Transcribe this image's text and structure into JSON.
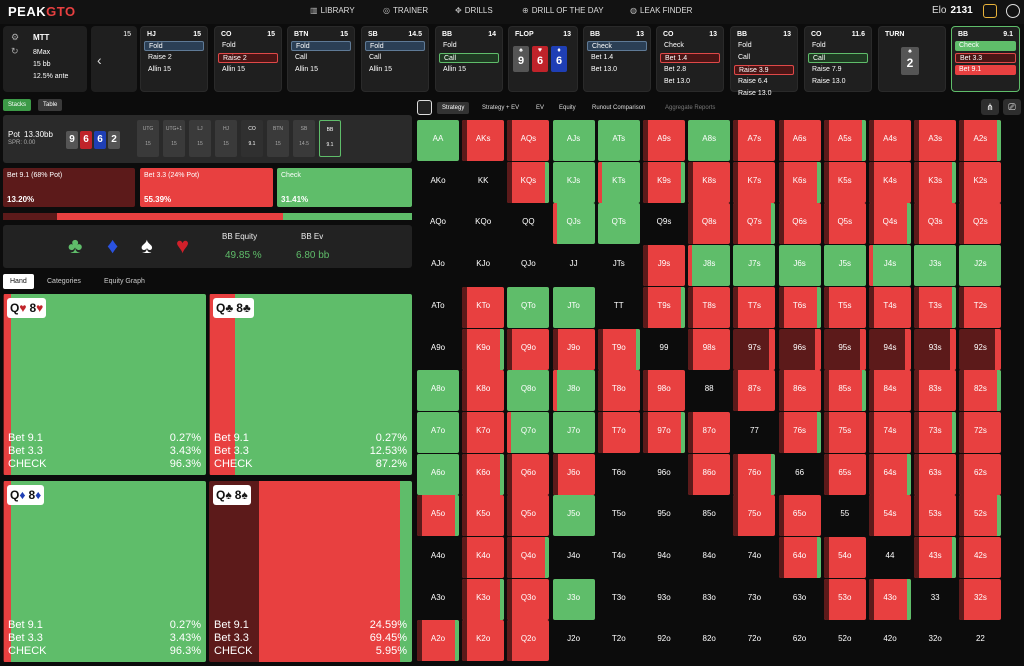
{
  "colors": {
    "green": "#5fbd6a",
    "red": "#e84040",
    "darkred": "#5c1a1a",
    "black": "#0c0c0c"
  },
  "topnav": {
    "logo_a": "PEAK",
    "logo_b": "GTO",
    "items": [
      {
        "icon": "library-icon",
        "label": "LIBRARY"
      },
      {
        "icon": "trainer-icon",
        "label": "TRAINER"
      },
      {
        "icon": "drills-icon",
        "label": "DRILLS"
      },
      {
        "icon": "drill-of-the-day-icon",
        "label": "DRILL OF THE DAY"
      },
      {
        "icon": "leak-finder-icon",
        "label": "LEAK FINDER"
      }
    ],
    "elo_label": "Elo",
    "elo_value": "2131"
  },
  "config": {
    "line1": "MTT",
    "line2": "8Max",
    "line3": "15 bb",
    "line4": "12.5% ante"
  },
  "prev_stack": "15",
  "positions": [
    {
      "name": "HJ",
      "stack": "15",
      "opts": [
        "Fold",
        "Raise 2",
        "Allin 15"
      ],
      "sel": 0
    },
    {
      "name": "CO",
      "stack": "15",
      "opts": [
        "Fold",
        "Raise 2",
        "Allin 15"
      ],
      "sel": 1
    },
    {
      "name": "BTN",
      "stack": "15",
      "opts": [
        "Fold",
        "Call",
        "Allin 15"
      ],
      "sel": 0
    },
    {
      "name": "SB",
      "stack": "14.5",
      "opts": [
        "Fold",
        "Call",
        "Allin 15"
      ],
      "sel": 0
    },
    {
      "name": "BB",
      "stack": "14",
      "opts": [
        "Fold",
        "Call",
        "Allin 15"
      ],
      "sel": 1
    },
    {
      "name": "FLOP",
      "stack": "13",
      "opts": [],
      "sel": -1
    },
    {
      "name": "BB",
      "stack": "13",
      "opts": [
        "Check",
        "Bet 1.4",
        "Bet 13.0"
      ],
      "sel": 0
    },
    {
      "name": "CO",
      "stack": "13",
      "opts": [
        "Check",
        "Bet 1.4",
        "Bet 2.8",
        "Bet 13.0"
      ],
      "sel": 1
    },
    {
      "name": "BB",
      "stack": "13",
      "opts": [
        "Fold",
        "Call",
        "Raise 3.9",
        "Raise 6.4",
        "Raise 13.0"
      ],
      "sel": 2
    },
    {
      "name": "CO",
      "stack": "11.6",
      "opts": [
        "Fold",
        "Call",
        "Raise 7.9",
        "Raise 13.0"
      ],
      "sel": 1
    },
    {
      "name": "TURN",
      "stack": "",
      "opts": [],
      "sel": -1
    },
    {
      "name": "BB",
      "stack": "9.1",
      "opts": [
        "Check",
        "Bet 3.3",
        "Bet 9.1"
      ],
      "sel": -2
    }
  ],
  "flop": [
    {
      "r": "9",
      "s": "♠"
    },
    {
      "r": "6",
      "s": "♥"
    },
    {
      "r": "6",
      "s": "♦"
    }
  ],
  "turn": {
    "r": "2",
    "s": "♠"
  },
  "left": {
    "toggle_stacks": "Stacks",
    "toggle_table": "Table",
    "pot_label": "Pot",
    "pot_value": "13.30bb",
    "spr": "SPR: 0.00",
    "board": [
      "9",
      "6",
      "6",
      "2"
    ],
    "seats": [
      {
        "n": "UTG",
        "s": "15"
      },
      {
        "n": "UTG+1",
        "s": "15"
      },
      {
        "n": "LJ",
        "s": "15"
      },
      {
        "n": "HJ",
        "s": "15"
      },
      {
        "n": "CO",
        "s": "9.1"
      },
      {
        "n": "BTN",
        "s": "15"
      },
      {
        "n": "SB",
        "s": "14.5"
      },
      {
        "n": "BB",
        "s": "9.1"
      }
    ],
    "actions": [
      {
        "label": "Bet 9.1 (68% Pot)",
        "value": "13.20%",
        "freq": 13.2
      },
      {
        "label": "Bet 3.3 (24% Pot)",
        "value": "55.39%",
        "freq": 55.39
      },
      {
        "label": "Check",
        "value": "31.41%",
        "freq": 31.41
      }
    ],
    "eq_label": "BB Equity",
    "eq_value": "49.85 %",
    "ev_label": "BB Ev",
    "ev_value": "6.80 bb",
    "tabs": [
      "Hand",
      "Categories",
      "Equity Graph"
    ],
    "combos": [
      {
        "rank": "Q",
        "s1": "♥",
        "k1": "rs",
        "r2": "8",
        "s2": "♥",
        "k2": "rs",
        "vals": [
          "0.27%",
          "3.43%",
          "96.3%"
        ]
      },
      {
        "rank": "Q",
        "s1": "♣",
        "k1": "bs",
        "r2": "8",
        "s2": "♣",
        "k2": "bs",
        "vals": [
          "0.27%",
          "12.53%",
          "87.2%"
        ]
      },
      {
        "rank": "Q",
        "s1": "♦",
        "k1": "ds",
        "r2": "8",
        "s2": "♦",
        "k2": "ds",
        "vals": [
          "0.27%",
          "3.43%",
          "96.3%"
        ]
      },
      {
        "rank": "Q",
        "s1": "♠",
        "k1": "bs",
        "r2": "8",
        "s2": "♠",
        "k2": "bs",
        "vals": [
          "24.59%",
          "69.45%",
          "5.95%"
        ]
      }
    ],
    "combo_labels": [
      "Bet 9.1",
      "Bet 3.3",
      "CHECK"
    ]
  },
  "right": {
    "tabs": [
      "Strategy",
      "Strategy + EV",
      "EV",
      "Equity",
      "Runout Comparison",
      "Aggregate Reports"
    ]
  },
  "matrix": {
    "ranks": [
      "A",
      "K",
      "Q",
      "J",
      "T",
      "9",
      "8",
      "7",
      "6",
      "5",
      "4",
      "3",
      "2"
    ],
    "rows": [
      "G R R G G R G R R R R R R",
      "B B R G G R R R R R R R R",
      "B B B G G B R R R R R R R",
      "B B B B B R G G G G G G G",
      "B R G G B R R R R R R R R",
      "B R R R R B R D D D D D D",
      "G R G G R R B R R R R R R",
      "G R G G R R R B R R R R R",
      "G R R R B B R R B R R R R",
      "R R R G B B B R R B R R R",
      "B R R B B B B B R R B R R",
      "B R R G B B B B B R R B R",
      "R R R B B B B B B B B B B"
    ]
  }
}
